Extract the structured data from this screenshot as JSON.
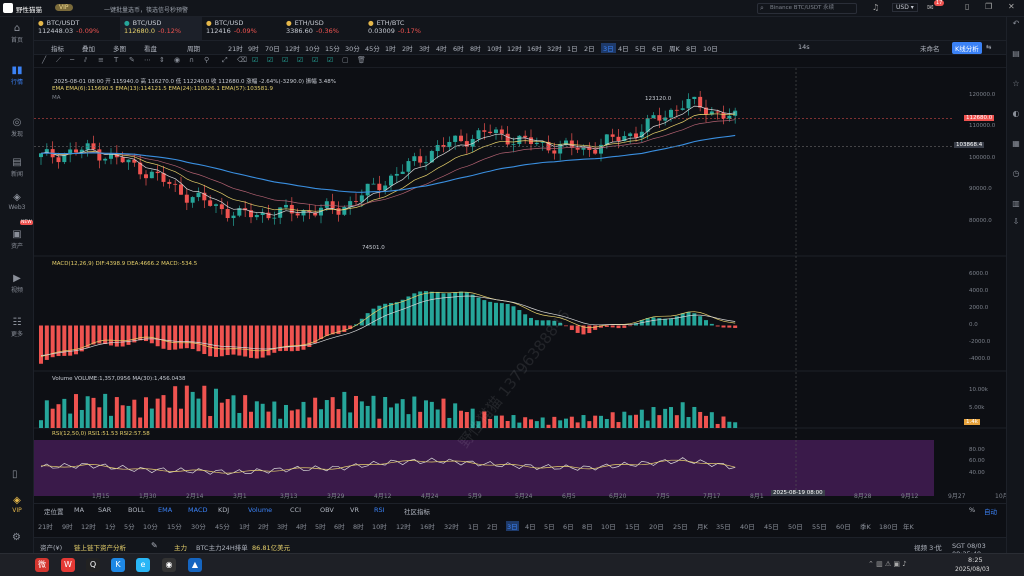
{
  "app": {
    "title": "野性猫猫",
    "vip_badge": "VIP",
    "search_placeholder": "Binance BTC/USDT 永续",
    "currency": "USD",
    "notif_count": "17",
    "ticker": "一键批量选币，筷选信号秒预警"
  },
  "sidebar": {
    "items": [
      {
        "icon": "home-icon",
        "label": "首页",
        "glyph": "⌂"
      },
      {
        "icon": "market-icon",
        "label": "行情",
        "glyph": "▮▮"
      },
      {
        "icon": "discover-icon",
        "label": "发现",
        "glyph": "◎"
      },
      {
        "icon": "news-icon",
        "label": "新闻",
        "glyph": "▤"
      },
      {
        "icon": "web3-icon",
        "label": "Web3",
        "glyph": "◈"
      },
      {
        "icon": "assets-icon",
        "label": "资产",
        "glyph": "▣"
      },
      {
        "icon": "video-icon",
        "label": "视频",
        "glyph": "▶"
      },
      {
        "icon": "more-icon",
        "label": "更多",
        "glyph": "☷"
      }
    ],
    "bottom_vip": "VIP",
    "new_badge": "NEW"
  },
  "tabs": [
    {
      "name": "BTC/USDT",
      "price": "112448.03",
      "change": "-0.09%"
    },
    {
      "name": "BTC/USD",
      "price": "112680.0",
      "change": "-0.12%"
    },
    {
      "name": "BTC/USD",
      "price": "112416",
      "change": "-0.09%"
    },
    {
      "name": "ETH/USD",
      "price": "3386.60",
      "change": "-0.36%"
    },
    {
      "name": "ETH/BTC",
      "price": "0.03009",
      "change": "-0.17%"
    }
  ],
  "toolbar": {
    "items": [
      "指标",
      "叠加",
      "多图",
      "看盘",
      "周期",
      "21时",
      "9时",
      "70日",
      "12时",
      "10分",
      "15分",
      "30分",
      "45分",
      "1时",
      "2时",
      "3时",
      "4时",
      "6时",
      "8时",
      "10时",
      "12时",
      "16时",
      "32时",
      "1日",
      "2日",
      "3日",
      "4日",
      "5日",
      "6日",
      "周K",
      "8日",
      "10日"
    ],
    "selected": "3日",
    "right": [
      "14s",
      "未命名",
      "K线分析"
    ]
  },
  "legend": {
    "ohlc": "2025-08-01 08:00  开 115940.0  高 116270.0  低 112240.0  收 112680.0  涨幅 -2.64%(-3290.0)  振幅 3.48%",
    "ema": "EMA  EMA(6):115690.5  EMA(13):114121.5  EMA(24):110626.1  EMA(57):103581.9",
    "ma": "MA",
    "macd": "MACD(12,26,9)  DIF:4398.9  DEA:4666.2  MACD:-534.5",
    "vol": "Volume  VOLUME:1,357,0956  MA(30):1,456.0438",
    "rsi": "RSI(12,50,0)  RSI1:51.53  RSI2:57.58"
  },
  "annotations": {
    "high": "123120.0",
    "low": "74501.0"
  },
  "price_axis": {
    "labels": [
      "120000.0",
      "110000.0",
      "100000.0",
      "90000.0",
      "80000.0"
    ],
    "current": "112680.0",
    "ema57_tag": "103868.4"
  },
  "macd_axis": [
    "6000.0",
    "4000.0",
    "2000.0",
    "0.0",
    "-2000.0",
    "-4000.0"
  ],
  "vol_axis": [
    "10.00k",
    "5.00k",
    "1.4k"
  ],
  "rsi_axis": [
    "80.00",
    "60.00",
    "40.00"
  ],
  "time_axis": [
    "1月15",
    "1月30",
    "2月14",
    "3月1",
    "3月13",
    "3月29",
    "4月12",
    "4月24",
    "5月9",
    "5月24",
    "6月5",
    "6月20",
    "7月5",
    "7月17",
    "8月1",
    "8月12",
    "8月28",
    "9月12",
    "9月27",
    "10月9"
  ],
  "crosshair_date": "2025-08-19 08:00",
  "bottom_toolbar": {
    "items": [
      "定位置",
      "MA",
      "SAR",
      "BOLL",
      "EMA",
      "MACD",
      "KDJ",
      "Volume",
      "CCI",
      "OBV",
      "VR",
      "RSI",
      "社区指标"
    ],
    "right": [
      "%",
      "自动"
    ]
  },
  "bottom_tf": [
    "21时",
    "9时",
    "12时",
    "1分",
    "5分",
    "10分",
    "15分",
    "30分",
    "45分",
    "1时",
    "2时",
    "3时",
    "4时",
    "5时",
    "6时",
    "8时",
    "10时",
    "12时",
    "16时",
    "32时",
    "1日",
    "2日",
    "3日",
    "4日",
    "5日",
    "6日",
    "8日",
    "10日",
    "15日",
    "20日",
    "25日",
    "月K",
    "35日",
    "40日",
    "45日",
    "50日",
    "55日",
    "60日",
    "季K",
    "180日",
    "年K"
  ],
  "status": {
    "label": "资产(¥)",
    "link": "链上链下资产分析",
    "main": "主力",
    "flow": "BTC主力24H排单",
    "amount": "86.81亿美元",
    "right_info": "视频 3·优",
    "time_zone": "SGT 08/03 08:25:49"
  },
  "taskbar": {
    "time": "8:25",
    "date": "2025/08/03"
  },
  "watermark": "野性猫猫  13796388846",
  "colors": {
    "up": "#26a69a",
    "down": "#ef5350",
    "accent": "#3b82f6",
    "ema6": "#d7d7d7",
    "ema13": "#e6d06b",
    "ema24": "#b06070",
    "ema57": "#3a8fe0",
    "rsi_bg": "#3a1a4a"
  },
  "chart_data": {
    "type": "candlestick",
    "x": [
      "2025-01-15",
      "2025-01-30",
      "2025-02-14",
      "2025-03-01",
      "2025-03-13",
      "2025-03-29",
      "2025-04-12",
      "2025-04-24",
      "2025-05-09",
      "2025-05-24",
      "2025-06-05",
      "2025-06-20",
      "2025-07-05",
      "2025-07-17",
      "2025-08-01"
    ],
    "close": [
      100500,
      103000,
      97000,
      88000,
      82000,
      83000,
      84000,
      93500,
      103500,
      108500,
      104500,
      103000,
      108500,
      118000,
      112680
    ],
    "high": [
      105500,
      108000,
      100000,
      95000,
      87000,
      88000,
      86000,
      95500,
      106000,
      111500,
      110000,
      107000,
      110000,
      123120,
      116270
    ],
    "low": [
      96000,
      97500,
      94000,
      81000,
      78000,
      76000,
      74501,
      86000,
      93500,
      102000,
      100500,
      99500,
      102000,
      107000,
      112240
    ],
    "macd": [
      -4500,
      -2500,
      -2000,
      -3000,
      -3800,
      -3200,
      -1000,
      2800,
      4200,
      3200,
      900,
      -900,
      300,
      1500,
      -534
    ],
    "volume": [
      5200,
      7000,
      5500,
      9000,
      6500,
      4500,
      7000,
      6000,
      6000,
      3000,
      2000,
      2500,
      3500,
      5000,
      1400
    ],
    "rsi": [
      52,
      55,
      47,
      45,
      42,
      48,
      50,
      60,
      63,
      57,
      52,
      50,
      57,
      64,
      51.5
    ],
    "ylim": [
      70000,
      125000
    ],
    "legend": [
      "EMA(6)",
      "EMA(13)",
      "EMA(24)",
      "EMA(57)"
    ]
  }
}
